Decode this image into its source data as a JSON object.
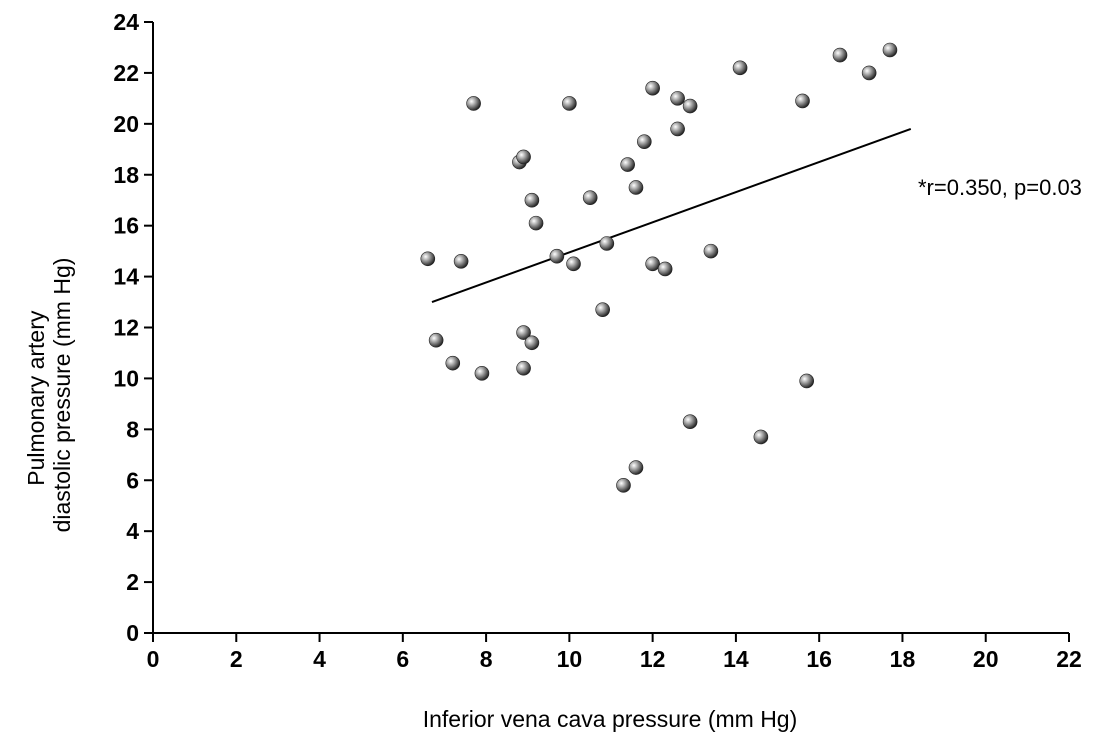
{
  "chart_data": {
    "type": "scatter",
    "xlabel": "Inferior vena cava pressure (mm Hg)",
    "ylabel_line1": "Pulmonary artery",
    "ylabel_line2": "diastolic pressure (mm Hg)",
    "xlim": [
      0,
      22
    ],
    "ylim": [
      0,
      24
    ],
    "x_ticks": [
      0,
      2,
      4,
      6,
      8,
      10,
      12,
      14,
      16,
      18,
      20,
      22
    ],
    "y_ticks": [
      0,
      2,
      4,
      6,
      8,
      10,
      12,
      14,
      16,
      18,
      20,
      22,
      24
    ],
    "grid": false,
    "annotation": "*r=0.350, p=0.03",
    "regression_line": {
      "x": [
        6.7,
        18.2
      ],
      "y": [
        13.0,
        19.8
      ]
    },
    "points": [
      {
        "x": 6.6,
        "y": 14.7
      },
      {
        "x": 6.8,
        "y": 11.5
      },
      {
        "x": 7.2,
        "y": 10.6
      },
      {
        "x": 7.4,
        "y": 14.6
      },
      {
        "x": 7.7,
        "y": 20.8
      },
      {
        "x": 7.9,
        "y": 10.2
      },
      {
        "x": 8.8,
        "y": 18.5
      },
      {
        "x": 8.9,
        "y": 18.7
      },
      {
        "x": 8.9,
        "y": 11.8
      },
      {
        "x": 8.9,
        "y": 10.4
      },
      {
        "x": 9.1,
        "y": 17.0
      },
      {
        "x": 9.1,
        "y": 11.4
      },
      {
        "x": 9.2,
        "y": 16.1
      },
      {
        "x": 9.7,
        "y": 14.8
      },
      {
        "x": 10.0,
        "y": 20.8
      },
      {
        "x": 10.1,
        "y": 14.5
      },
      {
        "x": 10.5,
        "y": 17.1
      },
      {
        "x": 10.8,
        "y": 12.7
      },
      {
        "x": 10.9,
        "y": 15.3
      },
      {
        "x": 11.3,
        "y": 5.8
      },
      {
        "x": 11.4,
        "y": 18.4
      },
      {
        "x": 11.6,
        "y": 17.5
      },
      {
        "x": 11.6,
        "y": 6.5
      },
      {
        "x": 11.8,
        "y": 19.3
      },
      {
        "x": 12.0,
        "y": 21.4
      },
      {
        "x": 12.0,
        "y": 14.5
      },
      {
        "x": 12.3,
        "y": 14.3
      },
      {
        "x": 12.6,
        "y": 19.8
      },
      {
        "x": 12.6,
        "y": 21.0
      },
      {
        "x": 12.9,
        "y": 20.7
      },
      {
        "x": 12.9,
        "y": 8.3
      },
      {
        "x": 13.4,
        "y": 15.0
      },
      {
        "x": 14.1,
        "y": 22.2
      },
      {
        "x": 14.6,
        "y": 7.7
      },
      {
        "x": 15.6,
        "y": 20.9
      },
      {
        "x": 15.7,
        "y": 9.9
      },
      {
        "x": 16.5,
        "y": 22.7
      },
      {
        "x": 17.2,
        "y": 22.0
      },
      {
        "x": 17.7,
        "y": 22.9
      }
    ]
  }
}
